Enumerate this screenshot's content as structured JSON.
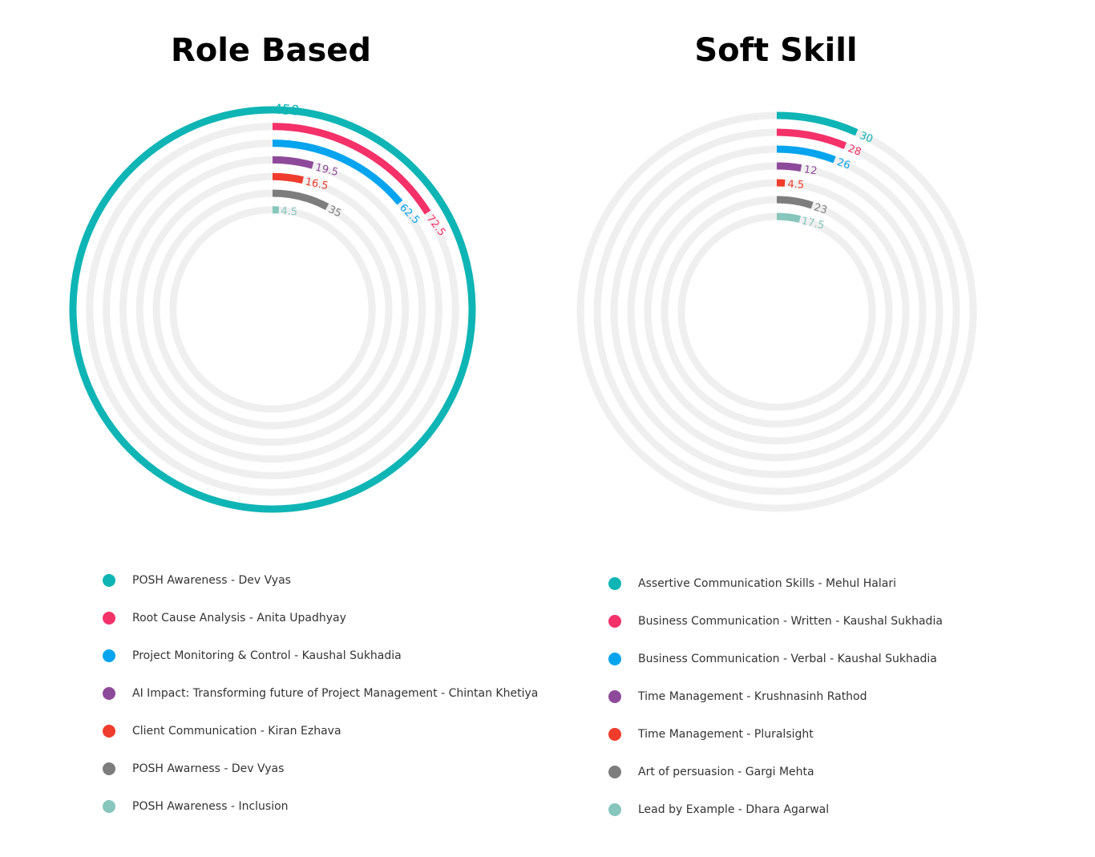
{
  "chart_data": [
    {
      "type": "radialBar",
      "title": "Role Based",
      "max": 450,
      "track_color": "#efefef",
      "series": [
        {
          "name": "POSH Awareness - Dev Vyas",
          "value": 450,
          "label": "450",
          "color": "#0fb5b5"
        },
        {
          "name": "Root Cause Analysis - Anita Upadhyay",
          "value": 72.5,
          "label": "72.5",
          "color": "#f5316a"
        },
        {
          "name": "Project Monitoring & Control - Kaushal Sukhadia",
          "value": 62.5,
          "label": "62.5",
          "color": "#06a4ee"
        },
        {
          "name": "AI Impact: Transforming future of Project Management - Chintan Khetiya",
          "value": 19.5,
          "label": "19.5",
          "color": "#8e4a9a"
        },
        {
          "name": "Client Communication - Kiran Ezhava",
          "value": 16.5,
          "label": "16.5",
          "color": "#ef3c2d"
        },
        {
          "name": "POSH Awarness - Dev Vyas",
          "value": 35,
          "label": "35",
          "color": "#7d7d7d"
        },
        {
          "name": "POSH Awareness - Inclusion",
          "value": 4.5,
          "label": "4.5",
          "color": "#86c6bc"
        }
      ]
    },
    {
      "type": "radialBar",
      "title": "Soft Skill",
      "max": 450,
      "track_color": "#efefef",
      "series": [
        {
          "name": "Assertive Communication Skills - Mehul Halari",
          "value": 30,
          "label": "30",
          "color": "#0fb5b5"
        },
        {
          "name": "Business Communication - Written - Kaushal Sukhadia",
          "value": 28,
          "label": "28",
          "color": "#f5316a"
        },
        {
          "name": "Business Communication - Verbal - Kaushal Sukhadia",
          "value": 26,
          "label": "26",
          "color": "#06a4ee"
        },
        {
          "name": "Time Management - Krushnasinh Rathod",
          "value": 12,
          "label": "12",
          "color": "#8e4a9a"
        },
        {
          "name": "Time Management - Pluralsight",
          "value": 4.5,
          "label": "4.5",
          "color": "#ef3c2d"
        },
        {
          "name": "Art of persuasion - Gargi Mehta",
          "value": 23,
          "label": "23",
          "color": "#7d7d7d"
        },
        {
          "name": "Lead by Example - Dhara Agarwal",
          "value": 17.5,
          "label": "17.5",
          "color": "#86c6bc"
        }
      ]
    }
  ]
}
